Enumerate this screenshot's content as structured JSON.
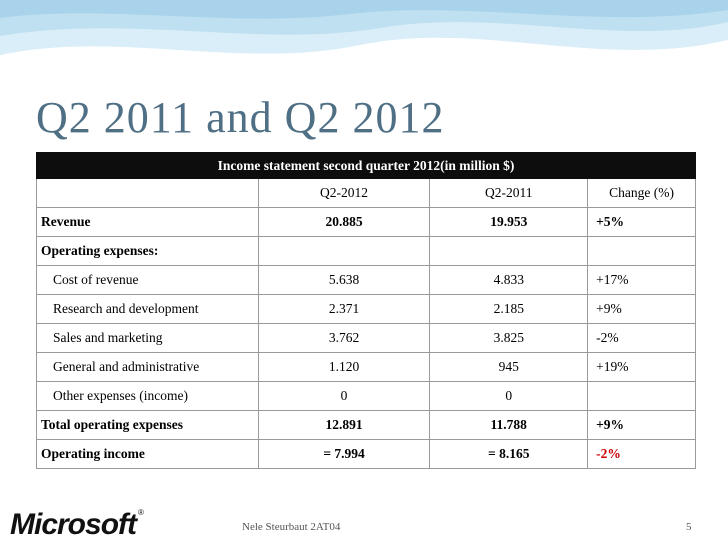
{
  "slide": {
    "title": "Q2 2011 and Q2 2012",
    "footer": "Nele Steurbaut 2AT04",
    "page_number": "5",
    "logo_text": "Microsoft"
  },
  "table": {
    "caption": "Income statement second quarter 2012(in million $)",
    "headers": [
      "",
      "Q2-2012",
      "Q2-2011",
      "Change (%)"
    ],
    "rows": [
      {
        "label": "Revenue",
        "q2_2012": "20.885",
        "q2_2011": "19.953",
        "change": "+5%"
      },
      {
        "label": "Operating expenses:",
        "q2_2012": "",
        "q2_2011": "",
        "change": ""
      },
      {
        "label": "Cost of revenue",
        "q2_2012": "5.638",
        "q2_2011": "4.833",
        "change": "+17%"
      },
      {
        "label": "Research and development",
        "q2_2012": "2.371",
        "q2_2011": "2.185",
        "change": "+9%"
      },
      {
        "label": "Sales and marketing",
        "q2_2012": "3.762",
        "q2_2011": "3.825",
        "change": "-2%"
      },
      {
        "label": "General and administrative",
        "q2_2012": "1.120",
        "q2_2011": "945",
        "change": "+19%"
      },
      {
        "label": "Other expenses (income)",
        "q2_2012": "0",
        "q2_2011": "0",
        "change": ""
      },
      {
        "label": "Total operating expenses",
        "q2_2012": "12.891",
        "q2_2011": "11.788",
        "change": "+9%"
      },
      {
        "label": "Operating income",
        "q2_2012": "= 7.994",
        "q2_2011": "= 8.165",
        "change": "-2%"
      }
    ]
  },
  "colors": {
    "title": "#4f6f85",
    "caption_bg": "#0d0d0d",
    "negative": "#cc0000",
    "wave": "#cfe6f2"
  }
}
